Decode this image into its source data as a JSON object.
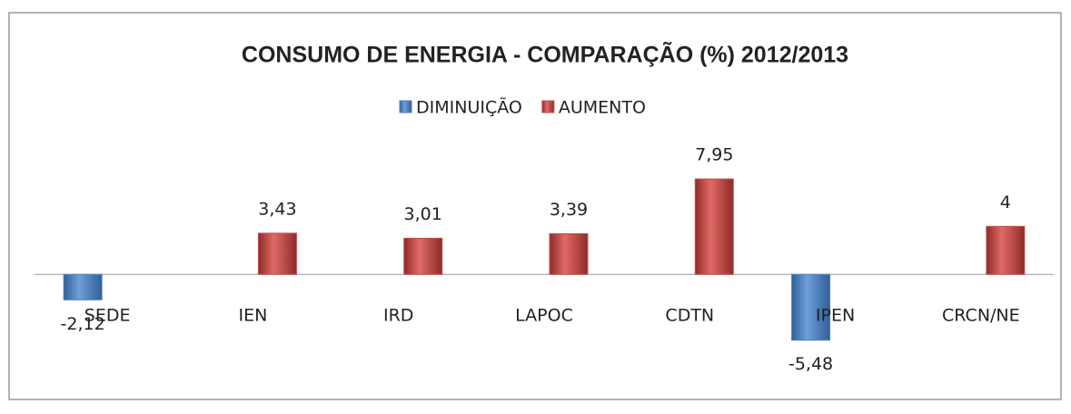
{
  "chart_data": {
    "type": "bar",
    "title": "CONSUMO DE ENERGIA - COMPARAÇÃO (%) 2012/2013",
    "categories": [
      "SEDE",
      "IEN",
      "IRD",
      "LAPOC",
      "CDTN",
      "IPEN",
      "CRCN/NE"
    ],
    "series": [
      {
        "name": "DIMINUIÇÃO",
        "color": "#4f81bd",
        "values": [
          -2.12,
          null,
          null,
          null,
          null,
          -5.48,
          null
        ],
        "value_labels": [
          "-2,12",
          null,
          null,
          null,
          null,
          "-5,48",
          null
        ]
      },
      {
        "name": "AUMENTO",
        "color": "#c0504d",
        "values": [
          null,
          3.43,
          3.01,
          3.39,
          7.95,
          null,
          4
        ],
        "value_labels": [
          null,
          "3,43",
          "3,01",
          "3,39",
          "7,95",
          null,
          "4"
        ]
      }
    ],
    "ylim": [
      -8,
      10
    ],
    "legend": "top"
  }
}
